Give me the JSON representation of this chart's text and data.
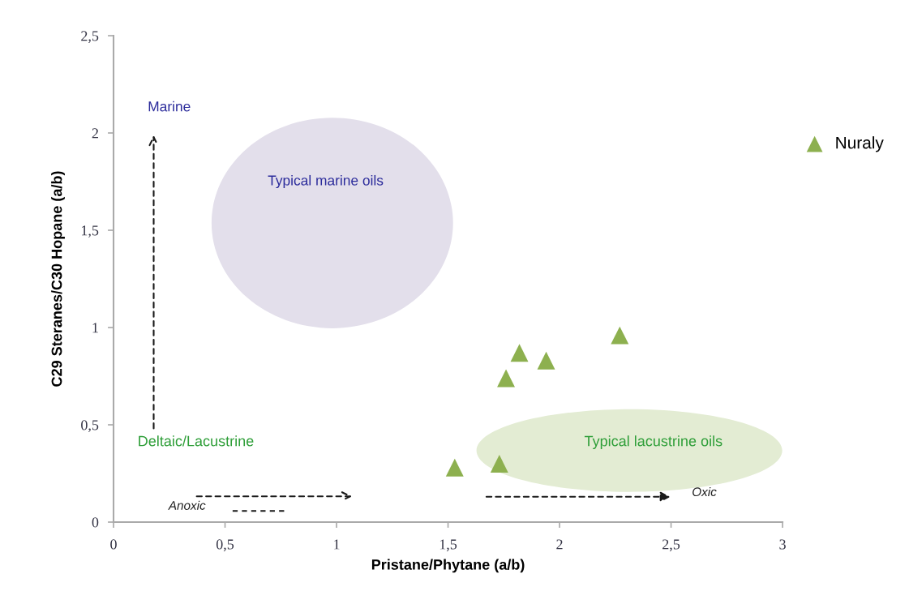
{
  "chart_data": {
    "type": "scatter",
    "xlabel": "Pristane/Phytane (a/b)",
    "ylabel": "C29 Steranes/C30 Hopane (a/b)",
    "xlim": [
      0,
      3
    ],
    "ylim": [
      0,
      2.5
    ],
    "xticks": [
      0,
      {
        "value": 0.5,
        "label": "0,5"
      },
      1,
      {
        "value": 1.5,
        "label": "1,5"
      },
      2,
      {
        "value": 2.5,
        "label": "2,5"
      },
      3
    ],
    "yticks": [
      0,
      {
        "value": 0.5,
        "label": "0,5"
      },
      1,
      {
        "value": 1.5,
        "label": "1,5"
      },
      2,
      {
        "value": 2.5,
        "label": "2,5"
      }
    ],
    "grid": false,
    "legend": "right",
    "marker": "triangle",
    "series": [
      {
        "name": "Nuraly",
        "color": "#8db04f",
        "x": [
          1.53,
          1.73,
          1.76,
          1.82,
          1.94,
          2.27
        ],
        "values": [
          0.28,
          0.3,
          0.74,
          0.87,
          0.83,
          0.96
        ]
      }
    ],
    "annotations": [
      "Marine",
      "Typical marine oils",
      "Deltaic/Lacustrine",
      "Typical lacustrine oils",
      "Anoxic",
      "Oxic"
    ]
  }
}
